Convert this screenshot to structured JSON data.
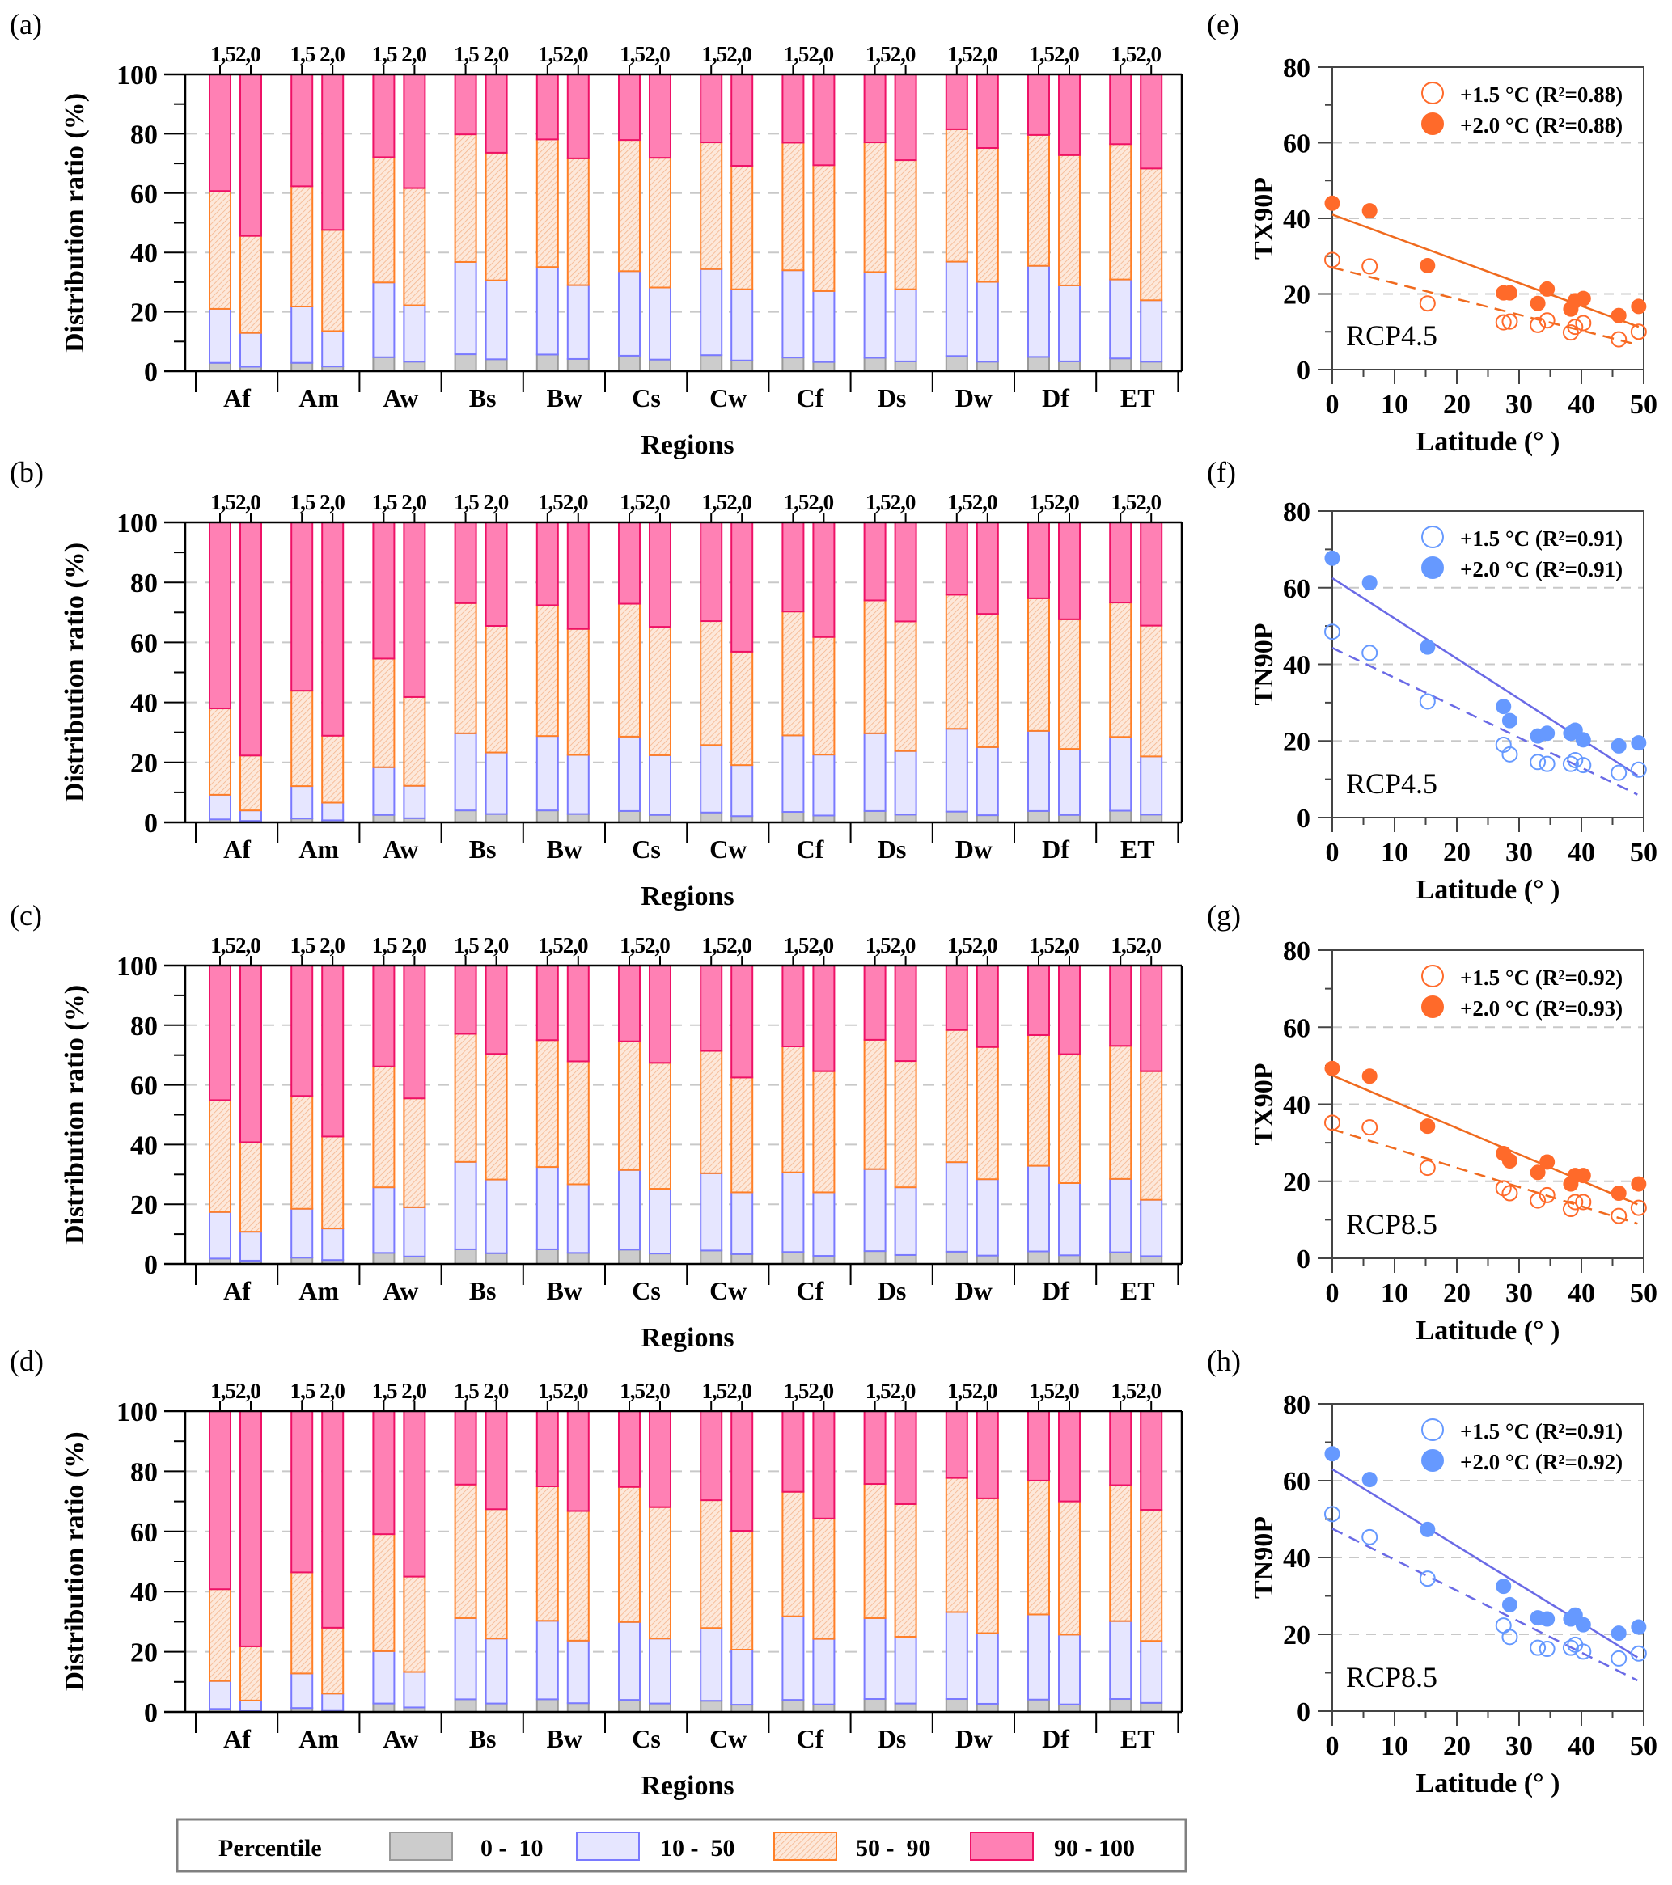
{
  "figure": {
    "legend": {
      "title": "Percentile",
      "items": [
        {
          "label": "0 -  10",
          "key": "p0_10"
        },
        {
          "label": "10 -  50",
          "key": "p10_50"
        },
        {
          "label": "50 -  90",
          "key": "p50_90"
        },
        {
          "label": "90 - 100",
          "key": "p90_100"
        }
      ]
    },
    "colors": {
      "p0_10_fill": "#cccccc",
      "p0_10_stroke": "#999999",
      "p10_50_fill": "#e6e6ff",
      "p10_50_stroke": "#7a7aff",
      "p50_90_fill": "#fde4d3",
      "p50_90_stroke": "#ff7f27",
      "p50_90_hatch": "#f5b08a",
      "p90_100_fill": "#ff80b4",
      "p90_100_stroke": "#ee1166",
      "orange": "#ff6a2a",
      "orange_line": "#f06a1e",
      "blue": "#6699ff",
      "blue_line": "#6a6ae6",
      "grid": "#c8c8c8"
    }
  },
  "chart_data": [
    {
      "panel": "(a)",
      "type": "bar",
      "stacked": true,
      "title": "",
      "xlabel": "Regions",
      "ylabel": "Distribution ratio (%)",
      "ylim": [
        0,
        100
      ],
      "yticks": [
        0,
        20,
        40,
        60,
        80,
        100
      ],
      "grid": "horizontal-dashed",
      "categories": [
        "Af",
        "Am",
        "Aw",
        "Bs",
        "Bw",
        "Cs",
        "Cw",
        "Cf",
        "Ds",
        "Dw",
        "Df",
        "ET"
      ],
      "sub_labels": [
        "1.5",
        "2.0"
      ],
      "top_tick_labels": [
        "1,52,0",
        "1,5 2,0",
        "1,5 2,0",
        "1,5 2,0",
        "1,52,0",
        "1,52,0",
        "1,52,0",
        "1,52,0",
        "1,52,0",
        "1,52,0",
        "1,52,0",
        "1,52,0"
      ],
      "series_note": "cumulative upper bounds of 0-10, 10-50, 50-90 segments; 90-100 fills to 100",
      "warming_1_5": {
        "p0_10": [
          2.8,
          2.8,
          4.7,
          5.7,
          5.6,
          5.2,
          5.4,
          4.6,
          4.5,
          5.1,
          4.8,
          4.3
        ],
        "p10_50": [
          21.0,
          21.8,
          29.9,
          36.8,
          35.1,
          33.7,
          34.4,
          34.0,
          33.4,
          36.9,
          35.5,
          30.9
        ],
        "p50_90": [
          60.7,
          62.3,
          72.1,
          79.8,
          78.1,
          77.9,
          77.1,
          77.0,
          77.1,
          81.5,
          79.6,
          76.5
        ]
      },
      "warming_2_0": {
        "p0_10": [
          1.5,
          1.6,
          3.2,
          4.0,
          4.1,
          3.9,
          3.6,
          3.1,
          3.3,
          3.2,
          3.3,
          3.2
        ],
        "p10_50": [
          12.9,
          13.5,
          22.2,
          30.6,
          29.0,
          28.2,
          27.6,
          27.0,
          27.6,
          30.1,
          28.9,
          23.9
        ],
        "p50_90": [
          45.6,
          47.6,
          61.7,
          73.6,
          71.7,
          71.9,
          69.2,
          69.4,
          71.1,
          75.2,
          72.8,
          68.3
        ]
      }
    },
    {
      "panel": "(b)",
      "type": "bar",
      "stacked": true,
      "xlabel": "Regions",
      "ylabel": "Distribution ratio (%)",
      "ylim": [
        0,
        100
      ],
      "yticks": [
        0,
        20,
        40,
        60,
        80,
        100
      ],
      "categories": [
        "Af",
        "Am",
        "Aw",
        "Bs",
        "Bw",
        "Cs",
        "Cw",
        "Cf",
        "Ds",
        "Dw",
        "Df",
        "ET"
      ],
      "top_tick_labels": [
        "1,52,0",
        "1,5 2,0",
        "1,5 2,0",
        "1,5 2,0",
        "1,52,0",
        "1,52,0",
        "1,52,0",
        "1,52,0",
        "1,52,0",
        "1,52,0",
        "1,52,0",
        "1,52,0"
      ],
      "warming_1_5": {
        "p0_10": [
          1.0,
          1.3,
          2.5,
          4.0,
          4.0,
          3.8,
          3.3,
          3.5,
          3.8,
          3.6,
          3.8,
          3.9
        ],
        "p10_50": [
          9.2,
          12.1,
          18.4,
          29.7,
          28.8,
          28.6,
          25.8,
          29.0,
          29.7,
          31.2,
          30.5,
          28.5
        ],
        "p50_90": [
          38.0,
          43.9,
          54.6,
          73.1,
          72.4,
          72.9,
          67.1,
          70.3,
          74.0,
          75.9,
          74.7,
          73.3
        ]
      },
      "warming_2_0": {
        "p0_10": [
          0.5,
          0.7,
          1.4,
          2.8,
          2.8,
          2.5,
          2.1,
          2.3,
          2.6,
          2.4,
          2.5,
          2.6
        ],
        "p10_50": [
          4.0,
          6.6,
          12.2,
          23.3,
          22.5,
          22.4,
          19.1,
          22.6,
          23.8,
          25.1,
          24.5,
          22.0
        ],
        "p50_90": [
          22.3,
          28.9,
          41.8,
          65.5,
          64.5,
          65.2,
          56.9,
          61.8,
          67.0,
          69.5,
          67.7,
          65.6
        ]
      }
    },
    {
      "panel": "(c)",
      "type": "bar",
      "stacked": true,
      "xlabel": "Regions",
      "ylabel": "Distribution ratio (%)",
      "ylim": [
        0,
        100
      ],
      "yticks": [
        0,
        20,
        40,
        60,
        80,
        100
      ],
      "categories": [
        "Af",
        "Am",
        "Aw",
        "Bs",
        "Bw",
        "Cs",
        "Cw",
        "Cf",
        "Ds",
        "Dw",
        "Df",
        "ET"
      ],
      "top_tick_labels": [
        "1,52,0",
        "1,5 2,0",
        "1,5 2,0",
        "1,5 2,0",
        "1,52,0",
        "1,52,0",
        "1,52,0",
        "1,52,0",
        "1,52,0",
        "1,52,0",
        "1,52,0",
        "1,52,0"
      ],
      "warming_1_5": {
        "p0_10": [
          1.8,
          2.1,
          3.7,
          4.9,
          4.9,
          4.8,
          4.5,
          4.0,
          4.3,
          4.1,
          4.2,
          3.9
        ],
        "p10_50": [
          17.4,
          18.5,
          25.7,
          34.2,
          32.5,
          31.5,
          30.4,
          30.7,
          31.8,
          34.1,
          32.9,
          28.5
        ],
        "p50_90": [
          54.9,
          56.3,
          66.2,
          77.1,
          75.0,
          74.6,
          71.4,
          72.9,
          75.1,
          78.4,
          76.7,
          73.1
        ]
      },
      "warming_2_0": {
        "p0_10": [
          1.1,
          1.3,
          2.5,
          3.6,
          3.7,
          3.5,
          3.3,
          2.7,
          3.0,
          2.8,
          2.9,
          2.6
        ],
        "p10_50": [
          10.8,
          11.9,
          19.0,
          28.3,
          26.7,
          25.2,
          24.0,
          24.0,
          25.7,
          28.4,
          27.1,
          21.5
        ],
        "p50_90": [
          40.8,
          42.7,
          55.5,
          70.4,
          67.9,
          67.4,
          62.5,
          64.6,
          68.0,
          72.7,
          70.3,
          64.6
        ]
      }
    },
    {
      "panel": "(d)",
      "type": "bar",
      "stacked": true,
      "xlabel": "Regions",
      "ylabel": "Distribution ratio (%)",
      "ylim": [
        0,
        100
      ],
      "yticks": [
        0,
        20,
        40,
        60,
        80,
        100
      ],
      "categories": [
        "Af",
        "Am",
        "Aw",
        "Bs",
        "Bw",
        "Cs",
        "Cw",
        "Cf",
        "Ds",
        "Dw",
        "Df",
        "ET"
      ],
      "top_tick_labels": [
        "1,52,0",
        "1,5 2,0",
        "1,5 2,0",
        "1,5 2,0",
        "1,52,0",
        "1,52,0",
        "1,52,0",
        "1,52,0",
        "1,52,0",
        "1,52,0",
        "1,52,0",
        "1,52,0"
      ],
      "warming_1_5": {
        "p0_10": [
          1.0,
          1.3,
          2.8,
          4.2,
          4.2,
          4.0,
          3.7,
          4.0,
          4.3,
          4.3,
          4.1,
          4.3
        ],
        "p10_50": [
          10.3,
          12.8,
          20.2,
          31.2,
          30.3,
          29.9,
          27.9,
          31.8,
          31.2,
          33.2,
          32.4,
          30.2
        ],
        "p50_90": [
          40.8,
          46.4,
          59.1,
          75.6,
          75.0,
          74.8,
          70.4,
          73.2,
          75.8,
          77.8,
          76.9,
          75.4
        ]
      },
      "warming_2_0": {
        "p0_10": [
          0.3,
          0.6,
          1.5,
          2.8,
          2.9,
          2.8,
          2.4,
          2.5,
          2.8,
          2.7,
          2.5,
          3.0
        ],
        "p10_50": [
          3.8,
          6.1,
          13.3,
          24.4,
          23.7,
          24.4,
          20.7,
          24.3,
          25.0,
          26.2,
          25.7,
          23.6
        ],
        "p50_90": [
          21.8,
          28.0,
          45.0,
          67.4,
          66.8,
          68.1,
          60.2,
          64.3,
          69.1,
          71.0,
          70.0,
          67.2
        ]
      }
    },
    {
      "panel": "(e)",
      "type": "scatter",
      "xlabel": "Latitude (° )",
      "ylabel": "TX90P",
      "xlim": [
        0,
        50
      ],
      "ylim": [
        0,
        80
      ],
      "xticks": [
        0,
        10,
        20,
        30,
        40,
        50
      ],
      "yticks": [
        0,
        20,
        40,
        60,
        80
      ],
      "annotation": "RCP4.5",
      "color": "orange",
      "legend_position": "top-right",
      "series": [
        {
          "name": "+1.5 °C",
          "r2_label": "(R²=0.88)",
          "marker": "open",
          "line": "dashed",
          "x": [
            0,
            6,
            15.3,
            27.5,
            28.5,
            33,
            34.5,
            38.3,
            39,
            40.3,
            46,
            49.2
          ],
          "y": [
            29,
            27.3,
            17.5,
            12.5,
            12.7,
            11.8,
            13,
            9.8,
            11.3,
            12.3,
            8,
            10
          ],
          "fit": {
            "x": [
              0,
              48.5
            ],
            "y": [
              27,
              6.8
            ]
          }
        },
        {
          "name": "+2.0 °C",
          "r2_label": "(R²=0.88)",
          "marker": "filled",
          "line": "solid",
          "x": [
            0,
            6,
            15.3,
            27.5,
            28.5,
            33,
            34.5,
            38.3,
            39,
            40.3,
            46,
            49.2
          ],
          "y": [
            44,
            42,
            27.5,
            20.3,
            20.3,
            17.5,
            21.3,
            16,
            18.2,
            18.8,
            14.3,
            16.7
          ],
          "fit": {
            "x": [
              0,
              49.2
            ],
            "y": [
              41,
              11.3
            ]
          }
        }
      ]
    },
    {
      "panel": "(f)",
      "type": "scatter",
      "xlabel": "Latitude (° )",
      "ylabel": "TN90P",
      "xlim": [
        0,
        50
      ],
      "ylim": [
        0,
        80
      ],
      "xticks": [
        0,
        10,
        20,
        30,
        40,
        50
      ],
      "yticks": [
        0,
        20,
        40,
        60,
        80
      ],
      "annotation": "RCP4.5",
      "color": "blue",
      "legend_position": "top-right",
      "series": [
        {
          "name": "+1.5 °C",
          "r2_label": "(R²=0.91)",
          "marker": "open",
          "line": "dashed",
          "x": [
            0,
            6,
            15.3,
            27.5,
            28.5,
            33,
            34.5,
            38.3,
            39,
            40.3,
            46,
            49.2
          ],
          "y": [
            48.5,
            43,
            30.3,
            19,
            16.5,
            14.5,
            14,
            14,
            15,
            13.7,
            11.7,
            12.5
          ],
          "fit": {
            "x": [
              0,
              49
            ],
            "y": [
              44.3,
              6
            ]
          }
        },
        {
          "name": "+2.0 °C",
          "r2_label": "(R²=0.91)",
          "marker": "filled",
          "line": "solid",
          "x": [
            0,
            6,
            15.3,
            27.5,
            28.5,
            33,
            34.5,
            38.3,
            39,
            40.3,
            46,
            49.2
          ],
          "y": [
            67.7,
            61.3,
            44.5,
            29,
            25.3,
            21.3,
            22,
            22,
            22.8,
            20.3,
            18.7,
            19.5
          ],
          "fit": {
            "x": [
              0,
              49
            ],
            "y": [
              62.5,
              11
            ]
          }
        }
      ]
    },
    {
      "panel": "(g)",
      "type": "scatter",
      "xlabel": "Latitude (° )",
      "ylabel": "TX90P",
      "xlim": [
        0,
        50
      ],
      "ylim": [
        0,
        80
      ],
      "xticks": [
        0,
        10,
        20,
        30,
        40,
        50
      ],
      "yticks": [
        0,
        20,
        40,
        60,
        80
      ],
      "annotation": "RCP8.5",
      "color": "orange",
      "legend_position": "top-right",
      "series": [
        {
          "name": "+1.5 °C",
          "r2_label": "(R²=0.92)",
          "marker": "open",
          "line": "dashed",
          "x": [
            0,
            6,
            15.3,
            27.5,
            28.5,
            33,
            34.5,
            38.3,
            39,
            40.3,
            46,
            49.2
          ],
          "y": [
            35.2,
            34,
            23.5,
            18.2,
            16.9,
            15,
            16.4,
            12.8,
            14.6,
            14.6,
            11,
            13.1
          ],
          "fit": {
            "x": [
              0,
              49
            ],
            "y": [
              33.5,
              9
            ]
          }
        },
        {
          "name": "+2.0 °C",
          "r2_label": "(R²=0.93)",
          "marker": "filled",
          "line": "solid",
          "x": [
            0,
            6,
            15.3,
            27.5,
            28.5,
            33,
            34.5,
            38.3,
            39,
            40.3,
            46,
            49.2
          ],
          "y": [
            49.3,
            47.3,
            34.3,
            27.2,
            25.3,
            22.3,
            25,
            19.3,
            21.5,
            21.5,
            16.9,
            19.3
          ],
          "fit": {
            "x": [
              0,
              49
            ],
            "y": [
              47.5,
              14
            ]
          }
        }
      ]
    },
    {
      "panel": "(h)",
      "type": "scatter",
      "xlabel": "Latitude (° )",
      "ylabel": "TN90P",
      "xlim": [
        0,
        50
      ],
      "ylim": [
        0,
        80
      ],
      "xticks": [
        0,
        10,
        20,
        30,
        40,
        50
      ],
      "yticks": [
        0,
        20,
        40,
        60,
        80
      ],
      "annotation": "RCP8.5",
      "color": "blue",
      "legend_position": "top-right",
      "series": [
        {
          "name": "+1.5 °C",
          "r2_label": "(R²=0.91)",
          "marker": "open",
          "line": "dashed",
          "x": [
            0,
            6,
            15.3,
            27.5,
            28.5,
            33,
            34.5,
            38.3,
            39,
            40.3,
            46,
            49.2
          ],
          "y": [
            51.3,
            45.3,
            34.5,
            22.3,
            19.3,
            16.5,
            16.2,
            16.5,
            17.3,
            15.5,
            13.7,
            15
          ],
          "fit": {
            "x": [
              0,
              49
            ],
            "y": [
              47.5,
              8
            ]
          }
        },
        {
          "name": "+2.0 °C",
          "r2_label": "(R²=0.92)",
          "marker": "filled",
          "line": "solid",
          "x": [
            0,
            6,
            15.3,
            27.5,
            28.5,
            33,
            34.5,
            38.3,
            39,
            40.3,
            46,
            49.2
          ],
          "y": [
            67,
            60.3,
            47.3,
            32.5,
            27.7,
            24.3,
            24,
            24,
            25,
            22.5,
            20.3,
            21.9
          ],
          "fit": {
            "x": [
              0,
              49
            ],
            "y": [
              63,
              14
            ]
          }
        }
      ]
    }
  ]
}
